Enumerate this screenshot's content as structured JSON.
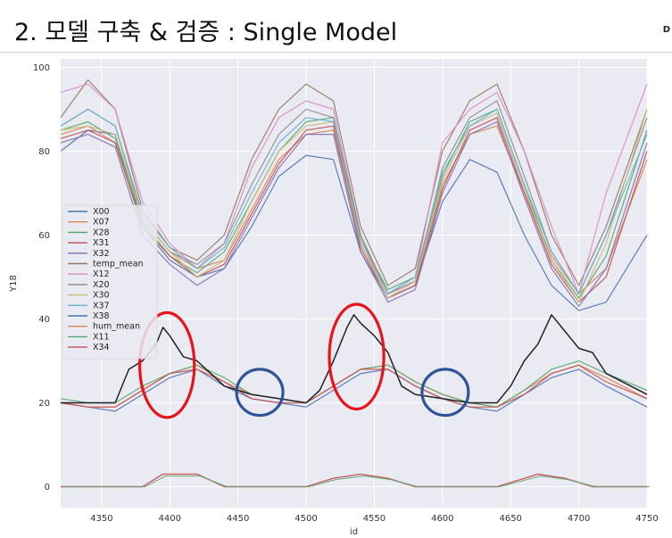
{
  "page": {
    "title": "2. 모델 구축 & 검증 : Single Model",
    "corner": "D"
  },
  "chart_data": {
    "type": "line",
    "xlabel": "id",
    "ylabel": "Y18",
    "xlim": [
      4320,
      4750
    ],
    "ylim": [
      -5,
      102
    ],
    "xticks": [
      4350,
      4400,
      4450,
      4500,
      4550,
      4600,
      4650,
      4700,
      4750
    ],
    "yticks": [
      0,
      20,
      40,
      60,
      80,
      100
    ],
    "grid": true,
    "legend_position": "left-middle",
    "legend": [
      "X00",
      "X07",
      "X28",
      "X31",
      "X32",
      "temp_mean",
      "X12",
      "X20",
      "X30",
      "X37",
      "X38",
      "hum_mean",
      "X11",
      "X34"
    ],
    "colors": {
      "X00": "#4c72b0",
      "X07": "#dd8452",
      "X28": "#55a868",
      "X31": "#c44e52",
      "X32": "#8172b3",
      "temp_mean": "#937860",
      "X12": "#da8bc3",
      "X20": "#8c8c8c",
      "X30": "#ccb974",
      "X37": "#64b5cd",
      "X38": "#4c72b0",
      "hum_mean": "#dd8452",
      "X11": "#55a868",
      "X34": "#c44e52",
      "Y18": "#222222"
    },
    "series": [
      {
        "name": "X00",
        "role": "hum",
        "x": [
          4320,
          4340,
          4360,
          4380,
          4400,
          4420,
          4440,
          4460,
          4480,
          4500,
          4520,
          4540,
          4560,
          4580,
          4600,
          4620,
          4640,
          4660,
          4680,
          4700,
          4720,
          4750
        ],
        "values": [
          80,
          85,
          84,
          62,
          54,
          50,
          52,
          62,
          74,
          79,
          78,
          56,
          45,
          48,
          68,
          78,
          75,
          60,
          48,
          42,
          44,
          60
        ]
      },
      {
        "name": "X07",
        "role": "hum",
        "x": [
          4320,
          4340,
          4360,
          4380,
          4400,
          4420,
          4440,
          4460,
          4480,
          4500,
          4520,
          4540,
          4560,
          4580,
          4600,
          4620,
          4640,
          4660,
          4680,
          4700,
          4720,
          4750
        ],
        "values": [
          84,
          86,
          82,
          64,
          56,
          52,
          54,
          66,
          78,
          84,
          85,
          58,
          46,
          49,
          72,
          84,
          86,
          70,
          55,
          46,
          52,
          78
        ]
      },
      {
        "name": "X28",
        "role": "hum",
        "x": [
          4320,
          4340,
          4360,
          4380,
          4400,
          4420,
          4440,
          4460,
          4480,
          4500,
          4520,
          4540,
          4560,
          4580,
          4600,
          4620,
          4640,
          4660,
          4680,
          4700,
          4720,
          4750
        ],
        "values": [
          85,
          87,
          83,
          63,
          55,
          51,
          56,
          68,
          80,
          87,
          88,
          59,
          47,
          50,
          74,
          87,
          90,
          72,
          54,
          45,
          55,
          85
        ]
      },
      {
        "name": "X31",
        "role": "hum",
        "x": [
          4320,
          4340,
          4360,
          4380,
          4400,
          4420,
          4440,
          4460,
          4480,
          4500,
          4520,
          4540,
          4560,
          4580,
          4600,
          4620,
          4640,
          4660,
          4680,
          4700,
          4720,
          4750
        ],
        "values": [
          83,
          85,
          82,
          62,
          55,
          50,
          53,
          65,
          77,
          85,
          86,
          57,
          45,
          48,
          71,
          85,
          88,
          70,
          53,
          44,
          50,
          80
        ]
      },
      {
        "name": "X32",
        "role": "hum",
        "x": [
          4320,
          4340,
          4360,
          4380,
          4400,
          4420,
          4440,
          4460,
          4480,
          4500,
          4520,
          4540,
          4560,
          4580,
          4600,
          4620,
          4640,
          4660,
          4680,
          4700,
          4720,
          4750
        ],
        "values": [
          82,
          84,
          81,
          60,
          53,
          48,
          52,
          64,
          76,
          84,
          84,
          56,
          44,
          47,
          70,
          84,
          87,
          69,
          52,
          43,
          52,
          82
        ]
      },
      {
        "name": "temp_mean",
        "role": "hum",
        "x": [
          4320,
          4340,
          4360,
          4380,
          4400,
          4420,
          4440,
          4460,
          4480,
          4500,
          4520,
          4540,
          4560,
          4580,
          4600,
          4620,
          4640,
          4660,
          4680,
          4700,
          4720,
          4750
        ],
        "values": [
          88,
          97,
          90,
          66,
          57,
          54,
          60,
          78,
          90,
          96,
          92,
          62,
          48,
          52,
          80,
          92,
          96,
          80,
          60,
          48,
          62,
          90
        ]
      },
      {
        "name": "X12",
        "role": "hum",
        "x": [
          4320,
          4340,
          4360,
          4380,
          4400,
          4420,
          4440,
          4460,
          4480,
          4500,
          4520,
          4540,
          4560,
          4580,
          4600,
          4620,
          4640,
          4660,
          4680,
          4700,
          4720,
          4750
        ],
        "values": [
          94,
          96,
          90,
          68,
          58,
          52,
          58,
          76,
          88,
          92,
          90,
          60,
          46,
          50,
          82,
          90,
          94,
          80,
          62,
          46,
          70,
          96
        ]
      },
      {
        "name": "X20",
        "role": "hum",
        "x": [
          4320,
          4340,
          4360,
          4380,
          4400,
          4420,
          4440,
          4460,
          4480,
          4500,
          4520,
          4540,
          4560,
          4580,
          4600,
          4620,
          4640,
          4660,
          4680,
          4700,
          4720,
          4750
        ],
        "values": [
          86,
          90,
          86,
          64,
          56,
          53,
          58,
          72,
          84,
          90,
          88,
          60,
          46,
          49,
          76,
          88,
          92,
          74,
          56,
          46,
          60,
          88
        ]
      },
      {
        "name": "X30",
        "role": "hum",
        "x": [
          4320,
          4340,
          4360,
          4380,
          4400,
          4420,
          4440,
          4460,
          4480,
          4500,
          4520,
          4540,
          4560,
          4580,
          4600,
          4620,
          4640,
          4660,
          4680,
          4700,
          4720,
          4750
        ],
        "values": [
          85,
          86,
          84,
          64,
          56,
          50,
          54,
          68,
          80,
          86,
          87,
          58,
          45,
          49,
          73,
          86,
          89,
          71,
          54,
          44,
          58,
          90
        ]
      },
      {
        "name": "X37",
        "role": "hum",
        "x": [
          4320,
          4340,
          4360,
          4380,
          4400,
          4420,
          4440,
          4460,
          4480,
          4500,
          4520,
          4540,
          4560,
          4580,
          4600,
          4620,
          4640,
          4660,
          4680,
          4700,
          4720,
          4750
        ],
        "values": [
          86,
          90,
          86,
          65,
          57,
          52,
          57,
          70,
          82,
          88,
          87,
          59,
          46,
          50,
          75,
          86,
          90,
          72,
          56,
          46,
          60,
          84
        ]
      },
      {
        "name": "X38",
        "role": "temp",
        "x": [
          4320,
          4340,
          4360,
          4380,
          4400,
          4420,
          4440,
          4460,
          4480,
          4500,
          4520,
          4540,
          4560,
          4580,
          4600,
          4620,
          4640,
          4660,
          4680,
          4700,
          4720,
          4750
        ],
        "values": [
          20,
          19,
          18,
          22,
          26,
          28,
          24,
          21,
          20,
          19,
          23,
          27,
          28,
          24,
          21,
          19,
          18,
          22,
          26,
          28,
          24,
          19
        ]
      },
      {
        "name": "hum_mean",
        "role": "temp",
        "x": [
          4320,
          4340,
          4360,
          4380,
          4400,
          4420,
          4440,
          4460,
          4480,
          4500,
          4520,
          4540,
          4560,
          4580,
          4600,
          4620,
          4640,
          4660,
          4680,
          4700,
          4720,
          4750
        ],
        "values": [
          20,
          19,
          19,
          23,
          27,
          29,
          25,
          22,
          21,
          20,
          24,
          28,
          29,
          25,
          22,
          20,
          19,
          23,
          27,
          29,
          26,
          21
        ]
      },
      {
        "name": "X11",
        "role": "temp",
        "x": [
          4320,
          4340,
          4360,
          4380,
          4400,
          4420,
          4440,
          4460,
          4480,
          4500,
          4520,
          4540,
          4560,
          4580,
          4600,
          4620,
          4640,
          4660,
          4680,
          4700,
          4720,
          4750
        ],
        "values": [
          21,
          20,
          20,
          24,
          27,
          29,
          26,
          22,
          21,
          20,
          24,
          28,
          29,
          25,
          22,
          20,
          19,
          23,
          28,
          30,
          27,
          23
        ]
      },
      {
        "name": "X34",
        "role": "temp",
        "x": [
          4320,
          4340,
          4360,
          4380,
          4400,
          4420,
          4440,
          4460,
          4480,
          4500,
          4520,
          4540,
          4560,
          4580,
          4600,
          4620,
          4640,
          4660,
          4680,
          4700,
          4720,
          4750
        ],
        "values": [
          20,
          19,
          19,
          23,
          27,
          28,
          25,
          21,
          20,
          20,
          24,
          28,
          28,
          24,
          21,
          19,
          19,
          22,
          27,
          29,
          25,
          21
        ]
      },
      {
        "name": "Y18",
        "role": "target",
        "x": [
          4320,
          4340,
          4360,
          4370,
          4380,
          4390,
          4395,
          4400,
          4410,
          4420,
          4430,
          4440,
          4460,
          4480,
          4500,
          4510,
          4520,
          4530,
          4535,
          4540,
          4550,
          4560,
          4570,
          4580,
          4600,
          4620,
          4640,
          4650,
          4660,
          4670,
          4680,
          4690,
          4700,
          4710,
          4720,
          4750
        ],
        "values": [
          20,
          20,
          20,
          28,
          30,
          34,
          38,
          36,
          31,
          30,
          27,
          24,
          22,
          21,
          20,
          23,
          30,
          38,
          41,
          39,
          36,
          32,
          24,
          22,
          21,
          20,
          20,
          24,
          30,
          34,
          41,
          37,
          33,
          32,
          27,
          22
        ]
      },
      {
        "name": "precip",
        "role": "bottom",
        "x": [
          4320,
          4380,
          4395,
          4420,
          4440,
          4500,
          4520,
          4540,
          4560,
          4580,
          4640,
          4670,
          4690,
          4710,
          4750
        ],
        "values": [
          0,
          0,
          3,
          3,
          0,
          0,
          2,
          3,
          2,
          0,
          0,
          3,
          2,
          0,
          0
        ]
      }
    ]
  },
  "annotations": {
    "red_circles": [
      {
        "x": 4398,
        "y": 29,
        "rx": 20,
        "ry": 12.5
      },
      {
        "x": 4537,
        "y": 31,
        "rx": 20,
        "ry": 12.5
      }
    ],
    "blue_ellipses": [
      {
        "x": 4466,
        "y": 22.5,
        "rx": 17,
        "ry": 5.5
      },
      {
        "x": 4602,
        "y": 22.5,
        "rx": 17,
        "ry": 5.5
      }
    ]
  }
}
